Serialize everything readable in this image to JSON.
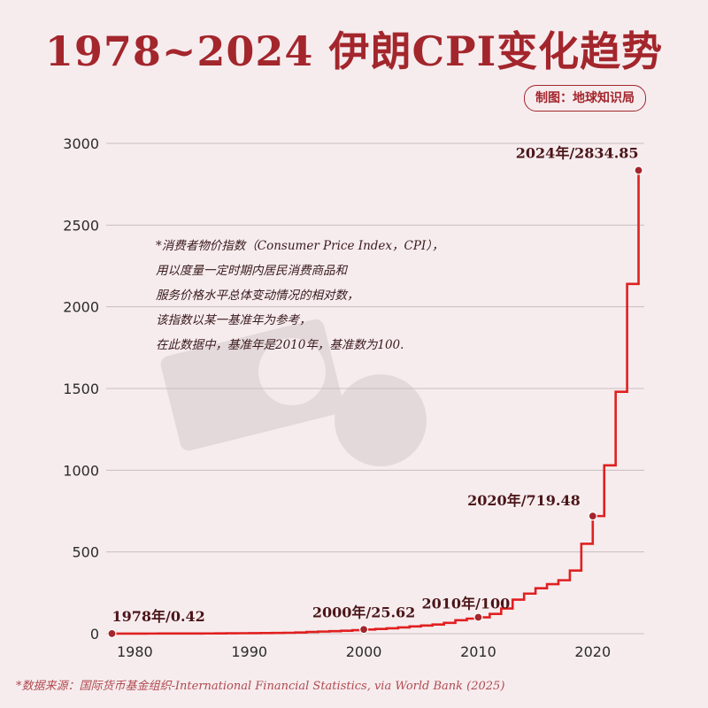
{
  "header": {
    "title": "1978~2024 伊朗CPI变化趋势",
    "credit": "制图：地球知识局"
  },
  "source": "*数据来源：国际货币基金组织-International Financial Statistics, via World Bank (2025)",
  "annotation": [
    "*消费者物价指数（Consumer Price Index，CPI），",
    "用以度量一定时期内居民消费商品和",
    "服务价格水平总体变动情况的相对数，",
    "该指数以某一基准年为参考，",
    "在此数据中，基准年是2010年，基准数为100."
  ],
  "colors": {
    "line": "#e02020",
    "accent": "#a3262c",
    "grid": "#c9bfc1",
    "marker": "#a3262c"
  },
  "chart_data": {
    "type": "line",
    "step": true,
    "title": "1978~2024 伊朗CPI变化趋势",
    "xlabel": "",
    "ylabel": "",
    "xlim": [
      1977.5,
      2024.5
    ],
    "ylim": [
      0,
      3000
    ],
    "yticks": [
      0,
      500,
      1000,
      1500,
      2000,
      2500,
      3000
    ],
    "xticks": [
      1980,
      1990,
      2000,
      2010,
      2020
    ],
    "grid": "horizontal",
    "series": [
      {
        "x": [
          1978,
          1979,
          1980,
          1981,
          1982,
          1983,
          1984,
          1985,
          1986,
          1987,
          1988,
          1989,
          1990,
          1991,
          1992,
          1993,
          1994,
          1995,
          1996,
          1997,
          1998,
          1999,
          2000,
          2001,
          2002,
          2003,
          2004,
          2005,
          2006,
          2007,
          2008,
          2009,
          2010,
          2011,
          2012,
          2013,
          2014,
          2015,
          2016,
          2017,
          2018,
          2019,
          2020,
          2021,
          2022,
          2023,
          2024
        ],
        "values": [
          0.42,
          0.47,
          0.58,
          0.71,
          0.84,
          0.99,
          1.1,
          1.2,
          1.4,
          1.8,
          2.3,
          2.7,
          2.9,
          3.5,
          4.4,
          5.4,
          7.3,
          10.3,
          12.9,
          15.1,
          17.7,
          21.2,
          25.62,
          28.6,
          33.0,
          38.4,
          44.2,
          50.0,
          56.0,
          66.0,
          82.0,
          92.0,
          100,
          121,
          154,
          208,
          245,
          278,
          303,
          327,
          386,
          550,
          719.48,
          1030,
          1480,
          2140,
          2834.85
        ]
      }
    ],
    "labeled_points": [
      {
        "x": 1978,
        "y": 0.42,
        "label": "1978年/0.42"
      },
      {
        "x": 2000,
        "y": 25.62,
        "label": "2000年/25.62"
      },
      {
        "x": 2010,
        "y": 100,
        "label": "2010年/100"
      },
      {
        "x": 2020,
        "y": 719.48,
        "label": "2020年/719.48"
      },
      {
        "x": 2024,
        "y": 2834.85,
        "label": "2024年/2834.85"
      }
    ]
  }
}
